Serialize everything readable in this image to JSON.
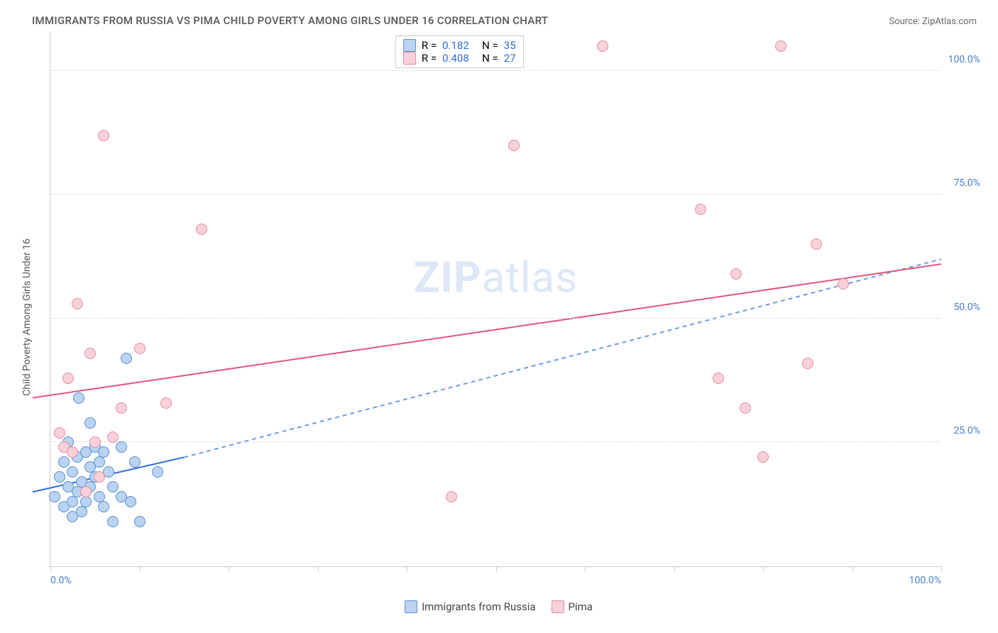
{
  "title": "IMMIGRANTS FROM RUSSIA VS PIMA CHILD POVERTY AMONG GIRLS UNDER 16 CORRELATION CHART",
  "source": "Source: ZipAtlas.com",
  "y_axis_label": "Child Poverty Among Girls Under 16",
  "watermark_bold": "ZIP",
  "watermark_light": "atlas",
  "chart": {
    "type": "scatter",
    "xlim": [
      0,
      100
    ],
    "ylim": [
      0,
      108
    ],
    "y_ticks": [
      25,
      50,
      75,
      100
    ],
    "y_tick_labels": [
      "25.0%",
      "50.0%",
      "75.0%",
      "100.0%"
    ],
    "x_ticks": [
      0,
      10,
      20,
      30,
      40,
      50,
      60,
      70,
      80,
      90,
      100
    ],
    "x_tick_labels_shown": {
      "0": "0.0%",
      "100": "100.0%"
    },
    "background_color": "#ffffff",
    "grid_color": "#dddddd",
    "axis_color": "#cccccc",
    "tick_label_color": "#4a7ec9",
    "point_radius": 8,
    "series": [
      {
        "name": "Immigrants from Russia",
        "fill_color": "#b9d3f0",
        "stroke_color": "#5b8fd6",
        "R": "0.182",
        "N": "35",
        "trend": {
          "x1": -2,
          "y1": 15,
          "x2": 15,
          "y2": 22,
          "dash_x2": 100,
          "dash_y2": 62,
          "solid_color": "#2d6cdf",
          "dash_color": "#6a9de3",
          "width": 2,
          "dash_pattern": "6,5"
        },
        "points": [
          {
            "x": 0.5,
            "y": 14
          },
          {
            "x": 1,
            "y": 18
          },
          {
            "x": 1.5,
            "y": 12
          },
          {
            "x": 1.5,
            "y": 21
          },
          {
            "x": 2,
            "y": 16
          },
          {
            "x": 2,
            "y": 25
          },
          {
            "x": 2.5,
            "y": 13
          },
          {
            "x": 2.5,
            "y": 19
          },
          {
            "x": 2.5,
            "y": 10
          },
          {
            "x": 3,
            "y": 22
          },
          {
            "x": 3,
            "y": 15
          },
          {
            "x": 3.2,
            "y": 34
          },
          {
            "x": 3.5,
            "y": 17
          },
          {
            "x": 3.5,
            "y": 11
          },
          {
            "x": 4,
            "y": 23
          },
          {
            "x": 4,
            "y": 13
          },
          {
            "x": 4.5,
            "y": 20
          },
          {
            "x": 4.5,
            "y": 16
          },
          {
            "x": 4.5,
            "y": 29
          },
          {
            "x": 5,
            "y": 18
          },
          {
            "x": 5,
            "y": 24
          },
          {
            "x": 5.5,
            "y": 14
          },
          {
            "x": 5.5,
            "y": 21
          },
          {
            "x": 6,
            "y": 23
          },
          {
            "x": 6,
            "y": 12
          },
          {
            "x": 6.5,
            "y": 19
          },
          {
            "x": 7,
            "y": 16
          },
          {
            "x": 7,
            "y": 9
          },
          {
            "x": 8,
            "y": 24
          },
          {
            "x": 8,
            "y": 14
          },
          {
            "x": 8.5,
            "y": 42
          },
          {
            "x": 9,
            "y": 13
          },
          {
            "x": 10,
            "y": 9
          },
          {
            "x": 12,
            "y": 19
          },
          {
            "x": 9.5,
            "y": 21
          }
        ]
      },
      {
        "name": "Pima",
        "fill_color": "#f7d1da",
        "stroke_color": "#e68aa3",
        "R": "0.408",
        "N": "27",
        "trend": {
          "x1": -2,
          "y1": 34,
          "x2": 100,
          "y2": 61,
          "solid_color": "#e15679",
          "width": 2
        },
        "points": [
          {
            "x": 1,
            "y": 27
          },
          {
            "x": 1.5,
            "y": 24
          },
          {
            "x": 2,
            "y": 38
          },
          {
            "x": 2.5,
            "y": 23
          },
          {
            "x": 3,
            "y": 53
          },
          {
            "x": 4,
            "y": 15
          },
          {
            "x": 4.5,
            "y": 43
          },
          {
            "x": 5,
            "y": 25
          },
          {
            "x": 5.5,
            "y": 18
          },
          {
            "x": 6,
            "y": 87
          },
          {
            "x": 7,
            "y": 26
          },
          {
            "x": 8,
            "y": 32
          },
          {
            "x": 10,
            "y": 44
          },
          {
            "x": 13,
            "y": 33
          },
          {
            "x": 17,
            "y": 68
          },
          {
            "x": 45,
            "y": 14
          },
          {
            "x": 52,
            "y": 85
          },
          {
            "x": 62,
            "y": 105
          },
          {
            "x": 73,
            "y": 72
          },
          {
            "x": 75,
            "y": 38
          },
          {
            "x": 77,
            "y": 59
          },
          {
            "x": 78,
            "y": 32
          },
          {
            "x": 80,
            "y": 22
          },
          {
            "x": 82,
            "y": 105
          },
          {
            "x": 85,
            "y": 41
          },
          {
            "x": 86,
            "y": 65
          },
          {
            "x": 89,
            "y": 57
          }
        ]
      }
    ]
  },
  "legend_top": {
    "rows": [
      {
        "swatch_fill": "#b9d3f0",
        "swatch_stroke": "#5b8fd6",
        "r_label": "R =",
        "r_val": "0.182",
        "n_label": "N =",
        "n_val": "35"
      },
      {
        "swatch_fill": "#f7d1da",
        "swatch_stroke": "#e68aa3",
        "r_label": "R =",
        "r_val": "0.408",
        "n_label": "N =",
        "n_val": "27"
      }
    ]
  },
  "legend_bottom": {
    "items": [
      {
        "swatch_fill": "#b9d3f0",
        "swatch_stroke": "#5b8fd6",
        "label": "Immigrants from Russia"
      },
      {
        "swatch_fill": "#f7d1da",
        "swatch_stroke": "#e68aa3",
        "label": "Pima"
      }
    ]
  }
}
